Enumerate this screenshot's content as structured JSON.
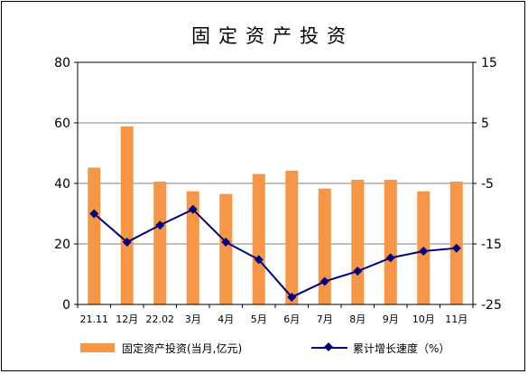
{
  "chart_data": {
    "type": "bar+line",
    "title": "固定资产投资",
    "categories": [
      "21.11",
      "12月",
      "22.02",
      "3月",
      "4月",
      "5月",
      "6月",
      "7月",
      "8月",
      "9月",
      "10月",
      "11月"
    ],
    "series": [
      {
        "name": "固定资产投资(当月,亿元)",
        "type": "bar",
        "axis": "left",
        "color": "#F79646",
        "values": [
          45.2,
          58.8,
          40.6,
          37.4,
          36.5,
          43.1,
          44.2,
          38.3,
          41.2,
          41.2,
          37.4,
          40.6
        ]
      },
      {
        "name": "累计增长速度（%）",
        "type": "line",
        "axis": "right",
        "color": "#000080",
        "marker": "diamond",
        "values": [
          -10.0,
          -14.7,
          -11.9,
          -9.3,
          -14.7,
          -17.6,
          -23.8,
          -21.2,
          -19.5,
          -17.3,
          -16.2,
          -15.7
        ]
      }
    ],
    "y_left": {
      "min": 0,
      "max": 80,
      "ticks": [
        0,
        20,
        40,
        60,
        80
      ],
      "labels": [
        "0",
        "20",
        "40",
        "60",
        "80"
      ]
    },
    "y_right": {
      "min": -25,
      "max": 15,
      "ticks": [
        -25,
        -15,
        -5,
        5,
        15
      ],
      "labels": [
        "-25",
        "-15",
        "-5",
        "5",
        "15"
      ]
    },
    "grid": true,
    "legend_position": "bottom"
  }
}
